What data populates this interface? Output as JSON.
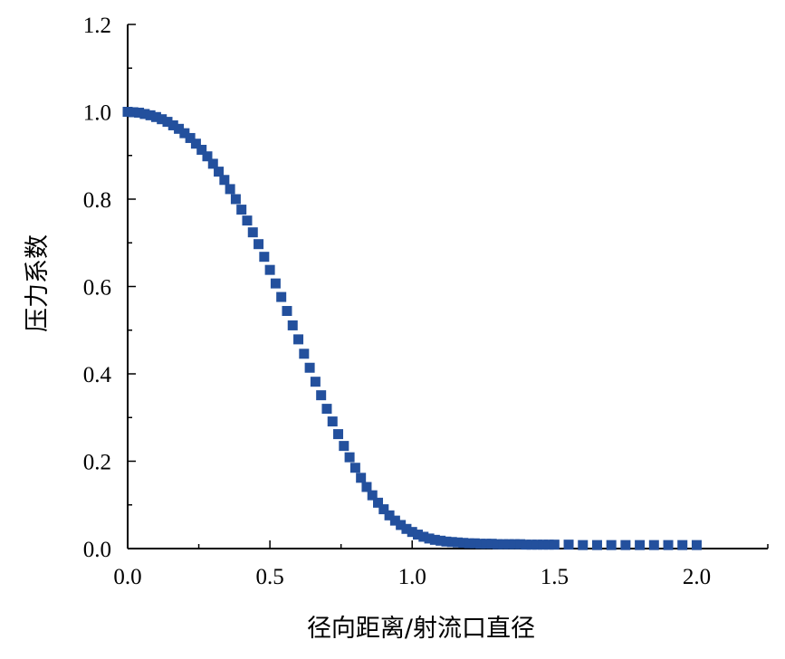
{
  "chart_data": {
    "type": "scatter",
    "title": "",
    "xlabel": "径向距离/射流口直径",
    "ylabel": "压力系数",
    "xlim": [
      0.0,
      2.25
    ],
    "ylim": [
      0.0,
      1.2
    ],
    "xticks": [
      "0.0",
      "0.5",
      "1.0",
      "1.5",
      "2.0"
    ],
    "yticks": [
      "0.0",
      "0.2",
      "0.4",
      "0.6",
      "0.8",
      "1.0",
      "1.2"
    ],
    "grid": false,
    "legend": "none",
    "marker": "square",
    "color": "#23509d",
    "series": [
      {
        "x": [
          0.0,
          0.02,
          0.04,
          0.06,
          0.08,
          0.1,
          0.12,
          0.14,
          0.16,
          0.18,
          0.2,
          0.22,
          0.24,
          0.26,
          0.28,
          0.3,
          0.32,
          0.34,
          0.36,
          0.38,
          0.4,
          0.42,
          0.44,
          0.46,
          0.48,
          0.5,
          0.52,
          0.54,
          0.56,
          0.58,
          0.6,
          0.62,
          0.64,
          0.66,
          0.68,
          0.7,
          0.72,
          0.74,
          0.76,
          0.78,
          0.8,
          0.82,
          0.84,
          0.86,
          0.88,
          0.9,
          0.92,
          0.94,
          0.96,
          0.98,
          1.0,
          1.02,
          1.04,
          1.06,
          1.08,
          1.1,
          1.12,
          1.14,
          1.16,
          1.18,
          1.2,
          1.22,
          1.24,
          1.26,
          1.28,
          1.3,
          1.32,
          1.34,
          1.36,
          1.38,
          1.4,
          1.42,
          1.44,
          1.46,
          1.48,
          1.5,
          1.55,
          1.6,
          1.65,
          1.7,
          1.75,
          1.8,
          1.85,
          1.9,
          1.95,
          2.0
        ],
        "y": [
          1.0,
          0.999,
          0.998,
          0.995,
          0.992,
          0.988,
          0.983,
          0.977,
          0.969,
          0.961,
          0.951,
          0.94,
          0.927,
          0.913,
          0.898,
          0.881,
          0.863,
          0.844,
          0.823,
          0.8,
          0.776,
          0.751,
          0.724,
          0.697,
          0.668,
          0.638,
          0.607,
          0.576,
          0.544,
          0.511,
          0.479,
          0.446,
          0.414,
          0.382,
          0.351,
          0.32,
          0.291,
          0.262,
          0.235,
          0.209,
          0.185,
          0.162,
          0.141,
          0.122,
          0.105,
          0.09,
          0.076,
          0.064,
          0.054,
          0.045,
          0.038,
          0.032,
          0.027,
          0.023,
          0.02,
          0.018,
          0.016,
          0.015,
          0.014,
          0.013,
          0.012,
          0.012,
          0.011,
          0.011,
          0.011,
          0.01,
          0.01,
          0.01,
          0.01,
          0.01,
          0.009,
          0.009,
          0.009,
          0.009,
          0.009,
          0.009,
          0.009,
          0.008,
          0.008,
          0.008,
          0.008,
          0.008,
          0.008,
          0.008,
          0.008,
          0.008
        ]
      }
    ]
  }
}
